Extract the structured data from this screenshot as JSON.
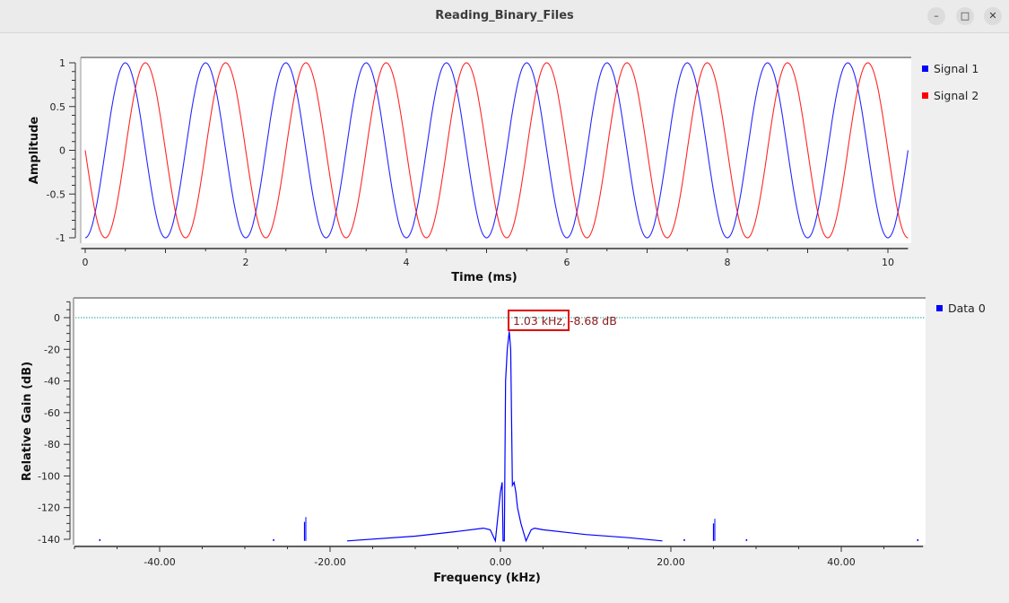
{
  "window": {
    "title": "Reading_Binary_Files",
    "buttons": {
      "minimize": "–",
      "maximize": "□",
      "close": "✕"
    }
  },
  "time_plot": {
    "ylabel": "Amplitude",
    "xlabel": "Time (ms)",
    "legend": [
      {
        "label": "Signal 1",
        "color": "#0000ff"
      },
      {
        "label": "Signal 2",
        "color": "#ff0000"
      }
    ]
  },
  "freq_plot": {
    "ylabel": "Relative Gain (dB)",
    "xlabel": "Frequency (kHz)",
    "marker_label": "1.03 kHz, -8.68 dB",
    "legend": [
      {
        "label": "Data 0",
        "color": "#0000ff"
      }
    ]
  },
  "chart_data": [
    {
      "type": "line",
      "title": "",
      "xlabel": "Time (ms)",
      "ylabel": "Amplitude",
      "xlim": [
        -0.05,
        10.25
      ],
      "ylim": [
        -1,
        1
      ],
      "xticks": [
        0,
        2,
        4,
        6,
        8,
        10
      ],
      "yticks": [
        -1,
        -0.5,
        0,
        0.5,
        1
      ],
      "ytick_labels": [
        "-1",
        "-0.5",
        "0",
        "0.5",
        "1"
      ],
      "legend_position": "right",
      "series": [
        {
          "name": "Signal 1",
          "color": "#0000ff",
          "frequency_khz": 1.0,
          "description": "-cos(2*pi*f*t), peaks at 0.5, 1.5 ... 9.5 ms",
          "phase_shift_ms": 0.0
        },
        {
          "name": "Signal 2",
          "color": "#ff0000",
          "frequency_khz": 1.0,
          "description": "same wave delayed ~0.25 ms, peaks at 0.75, 1.75 ... 9.75 ms",
          "phase_shift_ms": 0.25
        }
      ]
    },
    {
      "type": "line",
      "title": "",
      "xlabel": "Frequency (kHz)",
      "ylabel": "Relative Gain (dB)",
      "xlim": [
        -50,
        49.6
      ],
      "ylim": [
        -142,
        12
      ],
      "xticks": [
        -40,
        -20,
        0,
        20,
        40
      ],
      "xtick_labels": [
        "-40.00",
        "-20.00",
        "0.00",
        "20.00",
        "40.00"
      ],
      "yticks": [
        0,
        -20,
        -40,
        -60,
        -80,
        -100,
        -120,
        -140
      ],
      "reference_line_db": 0,
      "marker": {
        "x_khz": 1.03,
        "y_db": -8.68,
        "label": "1.03 kHz, -8.68 dB"
      },
      "legend_position": "right",
      "series": [
        {
          "name": "Data 0",
          "color": "#0000ff",
          "x": [
            -18,
            -10,
            -5,
            -2,
            -1.2,
            -0.6,
            0,
            0.2,
            0.3,
            0.45,
            0.6,
            0.8,
            1.03,
            1.2,
            1.4,
            1.6,
            1.8,
            2.0,
            2.4,
            3.0,
            3.6,
            4,
            5,
            10,
            15,
            19
          ],
          "y": [
            -141,
            -138,
            -135,
            -133,
            -134,
            -141,
            -110,
            -104,
            -141,
            -141,
            -40,
            -20,
            -8.68,
            -20,
            -106,
            -104,
            -110,
            -120,
            -130,
            -141,
            -134,
            -133,
            -134,
            -137,
            -139,
            -141
          ]
        }
      ],
      "spurs": [
        {
          "x_khz": -23.0,
          "y_db": -129
        },
        {
          "x_khz": 25.0,
          "y_db": -130
        }
      ]
    }
  ]
}
